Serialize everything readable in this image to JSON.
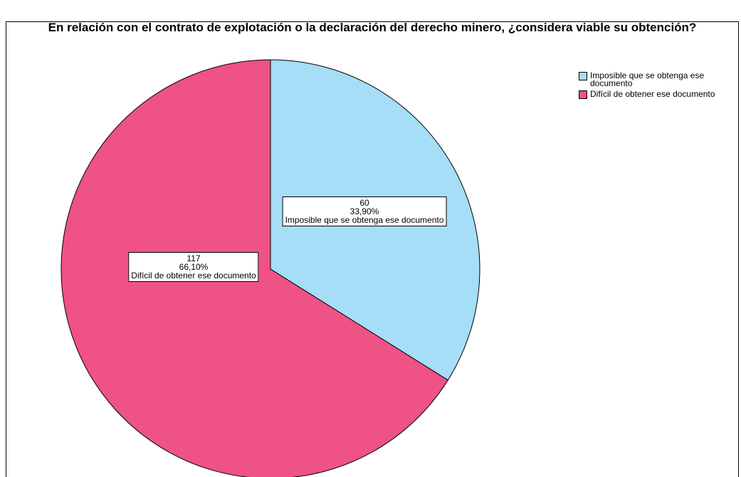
{
  "chart_data": {
    "type": "pie",
    "title": "En relación con el contrato de explotación o la declaración del derecho minero, ¿considera viable su obtención?",
    "categories": [
      "Imposible que se obtenga ese documento",
      "Difícil de obtener ese documento"
    ],
    "values": [
      60,
      117
    ],
    "percentages": [
      33.9,
      66.1
    ],
    "percentage_labels": [
      "33,90%",
      "66,10%"
    ],
    "colors": [
      "#a6ddf7",
      "#ef5285"
    ],
    "legend": "top-right"
  }
}
